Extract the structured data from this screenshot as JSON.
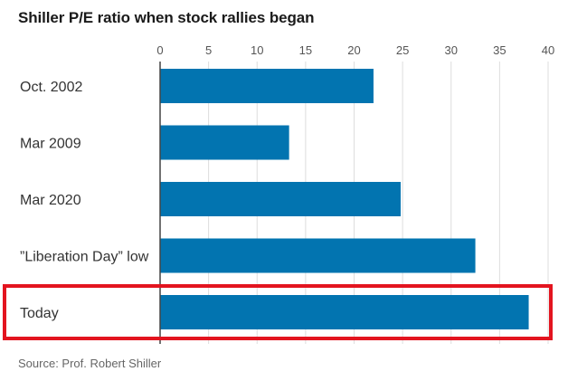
{
  "chart_data": {
    "type": "bar",
    "orientation": "horizontal",
    "title": "Shiller P/E ratio when stock rallies began",
    "categories": [
      "Oct. 2002",
      "Mar 2009",
      "Mar 2020",
      "”Liberation Day” low",
      "Today"
    ],
    "values": [
      22,
      13.3,
      24.8,
      32.5,
      38
    ],
    "xlim": [
      0,
      40
    ],
    "x_ticks": [
      "0",
      "5",
      "10",
      "15",
      "20",
      "25",
      "30",
      "35",
      "40"
    ],
    "xlabel": "",
    "ylabel": "",
    "grid": true,
    "highlighted_category": "Today",
    "source": "Source: Prof. Robert Shiller",
    "colors": {
      "bar": "#0274b0",
      "highlight_box": "#e3141f",
      "grid": "#dddddd",
      "axis": "#444444"
    }
  }
}
